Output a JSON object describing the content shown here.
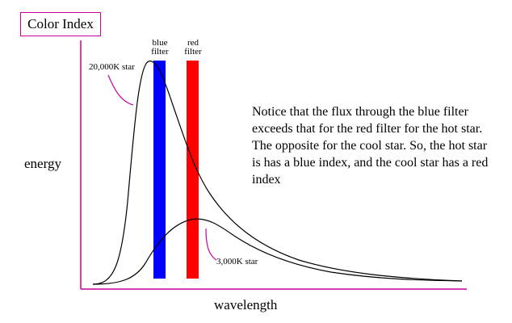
{
  "title": "Color Index",
  "filters": {
    "blue": {
      "label_line1": "blue",
      "label_line2": "filter",
      "color": "#0000ff"
    },
    "red": {
      "label_line1": "red",
      "label_line2": "filter",
      "color": "#ff0000"
    }
  },
  "curves": {
    "hot": {
      "label": "20,000K star"
    },
    "cool": {
      "label": "3,000K star"
    }
  },
  "axes": {
    "ylabel": "energy",
    "xlabel": "wavelength"
  },
  "note": "Notice that the flux through the blue filter exceeds that for the red filter for the hot star.  The opposite for the cool star. So, the hot star is has a blue index, and the cool star has a red index",
  "colors": {
    "title_border": "#cc0099",
    "callout": "#cc0099",
    "curve": "#000000",
    "axis": "#cc0099"
  }
}
